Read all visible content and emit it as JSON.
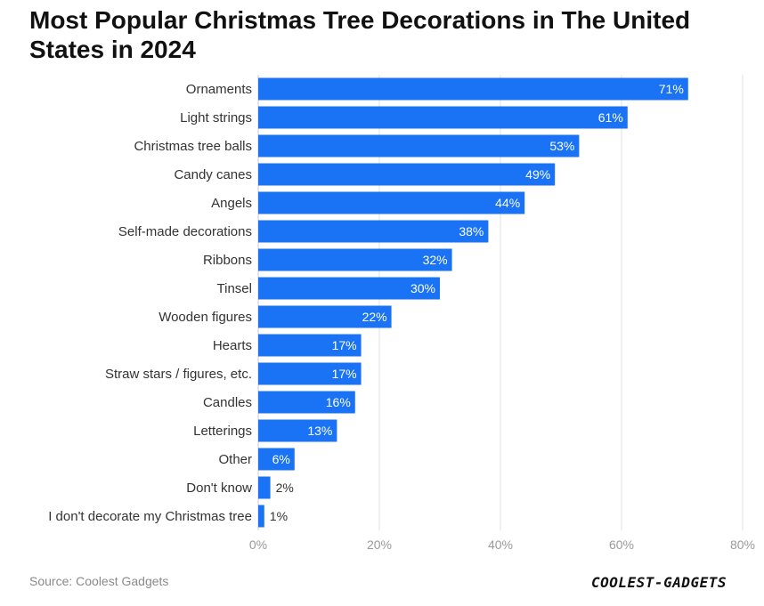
{
  "title": "Most Popular Christmas Tree Decorations in The United States in 2024",
  "source": "Source: Coolest Gadgets",
  "logo_text": "COOLEST-GADGETS",
  "colors": {
    "bar": "#1a73f5",
    "grid": "#e0e0e0",
    "label_inside": "#ffffff",
    "label_outside": "#333333"
  },
  "chart_data": {
    "type": "bar",
    "orientation": "horizontal",
    "categories": [
      "Ornaments",
      "Light strings",
      "Christmas tree balls",
      "Candy canes",
      "Angels",
      "Self-made decorations",
      "Ribbons",
      "Tinsel",
      "Wooden figures",
      "Hearts",
      "Straw stars / figures, etc.",
      "Candles",
      "Letterings",
      "Other",
      "Don't know",
      "I don't decorate my Christmas tree"
    ],
    "values": [
      71,
      61,
      53,
      49,
      44,
      38,
      32,
      30,
      22,
      17,
      17,
      16,
      13,
      6,
      2,
      1
    ],
    "value_labels": [
      "71%",
      "61%",
      "53%",
      "49%",
      "44%",
      "38%",
      "32%",
      "30%",
      "22%",
      "17%",
      "17%",
      "16%",
      "13%",
      "6%",
      "2%",
      "1%"
    ],
    "xlim": [
      0,
      80
    ],
    "xticks": [
      0,
      20,
      40,
      60,
      80
    ],
    "xtick_labels": [
      "0%",
      "20%",
      "40%",
      "60%",
      "80%"
    ],
    "grid": true
  }
}
